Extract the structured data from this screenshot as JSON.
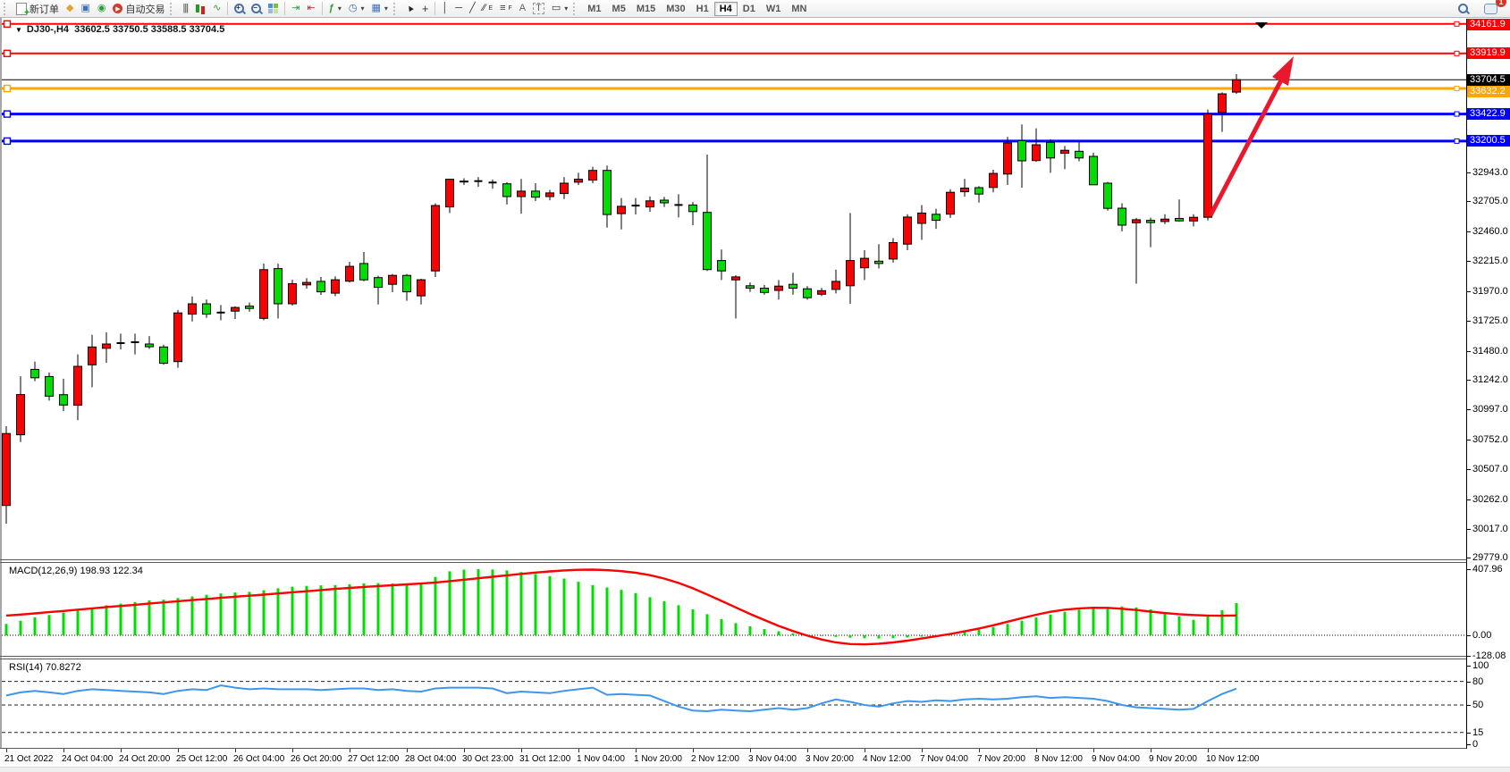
{
  "toolbar": {
    "new_order_label": "新订单",
    "autotrade_label": "自动交易",
    "timeframes": [
      "M1",
      "M5",
      "M15",
      "M30",
      "H1",
      "H4",
      "D1",
      "W1",
      "MN"
    ],
    "active_timeframe": "H4",
    "notification_count": "1",
    "tool_letters": {
      "text": "A",
      "label": "T",
      "channel": "E",
      "fibonacci": "F"
    },
    "icons": {
      "new_order_plus": "+",
      "symbols": "◆",
      "data_window": "▣",
      "navigator": "◉",
      "autotrade_play": "▶",
      "bar_chart": "|||",
      "line_chart": "∿",
      "zoom_in": "+",
      "zoom_out": "−",
      "auto_scroll": "⇥",
      "chart_shift": "⇤",
      "indicators": "ƒ",
      "clock": "◷",
      "template": "▦",
      "cursor": "▲",
      "crosshair": "+",
      "vline": "│",
      "hline": "─",
      "trendline": "╱",
      "channel": "∕∕",
      "fibonacci": "≡",
      "shapes": "▭",
      "dropdown": "▾"
    }
  },
  "chart": {
    "title_symbol": "DJ30-,H4",
    "title_ohlc": "33602.5 33750.5 33588.5 33704.5",
    "macd_label": "MACD(12,26,9) 198.93 122.34",
    "rsi_label": "RSI(14) 70.8272"
  },
  "chart_data": {
    "type": "candlestick",
    "symbol": "DJ30-",
    "timeframe": "H4",
    "current_ohlc": {
      "open": 33602.5,
      "high": 33750.5,
      "low": 33588.5,
      "close": 33704.5
    },
    "current_price": 33704.5,
    "colors": {
      "bull": "#fe0000",
      "bear": "#00dd00",
      "wick": "#000000",
      "macd_histogram": "#00dd00",
      "macd_signal": "#fe0000",
      "rsi_line": "#3d96ee"
    },
    "hlines": [
      {
        "price": 34161.9,
        "color": "#fe0000",
        "width": 2
      },
      {
        "price": 33919.9,
        "color": "#fe0000",
        "width": 2
      },
      {
        "price": 33632.2,
        "color": "#ffa500",
        "width": 3
      },
      {
        "price": 33422.9,
        "color": "#0000ff",
        "width": 3
      },
      {
        "price": 33200.5,
        "color": "#0000ff",
        "width": 3
      }
    ],
    "price_axis_ticks": [
      32943.0,
      32705.0,
      32460.0,
      32215.0,
      31970.0,
      31725.0,
      31480.0,
      31242.0,
      30997.0,
      30752.0,
      30507.0,
      30262.0,
      30017.0,
      29779.0
    ],
    "time_labels": [
      "21 Oct 2022",
      "24 Oct 04:00",
      "24 Oct 20:00",
      "25 Oct 12:00",
      "26 Oct 04:00",
      "26 Oct 20:00",
      "27 Oct 12:00",
      "28 Oct 04:00",
      "30 Oct 23:00",
      "31 Oct 12:00",
      "1 Nov 04:00",
      "1 Nov 20:00",
      "2 Nov 12:00",
      "3 Nov 04:00",
      "3 Nov 20:00",
      "4 Nov 12:00",
      "7 Nov 04:00",
      "7 Nov 20:00",
      "8 Nov 12:00",
      "9 Nov 04:00",
      "9 Nov 20:00",
      "10 Nov 12:00"
    ],
    "candles": [
      [
        30210,
        30860,
        30060,
        30800
      ],
      [
        30790,
        31270,
        30730,
        31120
      ],
      [
        31327,
        31390,
        31230,
        31258
      ],
      [
        31268,
        31300,
        31070,
        31107
      ],
      [
        31119,
        31250,
        30985,
        31034
      ],
      [
        31034,
        31450,
        30910,
        31352
      ],
      [
        31364,
        31610,
        31180,
        31511
      ],
      [
        31500,
        31630,
        31380,
        31535
      ],
      [
        31542,
        31620,
        31490,
        31542
      ],
      [
        31550,
        31620,
        31450,
        31550
      ],
      [
        31535,
        31600,
        31495,
        31512
      ],
      [
        31511,
        31530,
        31365,
        31377
      ],
      [
        31390,
        31815,
        31340,
        31790
      ],
      [
        31780,
        31925,
        31720,
        31865
      ],
      [
        31865,
        31900,
        31750,
        31780
      ],
      [
        31793,
        31855,
        31730,
        31793
      ],
      [
        31805,
        31845,
        31740,
        31835
      ],
      [
        31846,
        31875,
        31800,
        31827
      ],
      [
        31745,
        32195,
        31730,
        32145
      ],
      [
        32154,
        32195,
        31745,
        31865
      ],
      [
        31865,
        32062,
        31850,
        32030
      ],
      [
        32020,
        32075,
        31990,
        32040
      ],
      [
        32049,
        32085,
        31938,
        31963
      ],
      [
        31952,
        32090,
        31927,
        32062
      ],
      [
        32050,
        32210,
        32040,
        32172
      ],
      [
        32196,
        32290,
        32050,
        32062
      ],
      [
        32080,
        32095,
        31860,
        32000
      ],
      [
        32025,
        32110,
        31960,
        32098
      ],
      [
        32098,
        32110,
        31890,
        31963
      ],
      [
        31930,
        32070,
        31860,
        32062
      ],
      [
        32135,
        32690,
        32085,
        32672
      ],
      [
        32660,
        32890,
        32610,
        32887
      ],
      [
        32870,
        32895,
        32840,
        32872
      ],
      [
        32872,
        32905,
        32825,
        32872
      ],
      [
        32860,
        32885,
        32810,
        32860
      ],
      [
        32850,
        32862,
        32680,
        32745
      ],
      [
        32745,
        32890,
        32605,
        32790
      ],
      [
        32790,
        32855,
        32708,
        32740
      ],
      [
        32745,
        32800,
        32715,
        32775
      ],
      [
        32770,
        32905,
        32725,
        32855
      ],
      [
        32863,
        32940,
        32840,
        32887
      ],
      [
        32880,
        32990,
        32855,
        32960
      ],
      [
        32960,
        33000,
        32490,
        32598
      ],
      [
        32605,
        32733,
        32475,
        32665
      ],
      [
        32671,
        32733,
        32598,
        32671
      ],
      [
        32660,
        32745,
        32620,
        32710
      ],
      [
        32716,
        32742,
        32660,
        32694
      ],
      [
        32676,
        32764,
        32574,
        32676
      ],
      [
        32676,
        32700,
        32510,
        32622
      ],
      [
        32615,
        33090,
        32135,
        32146
      ],
      [
        32220,
        32310,
        32060,
        32135
      ],
      [
        32062,
        32100,
        31745,
        32086
      ],
      [
        32013,
        32040,
        31963,
        31993
      ],
      [
        31993,
        32020,
        31940,
        31958
      ],
      [
        31975,
        32060,
        31900,
        32010
      ],
      [
        32025,
        32120,
        31940,
        31993
      ],
      [
        31988,
        32010,
        31898,
        31915
      ],
      [
        31944,
        31995,
        31928,
        31973
      ],
      [
        31983,
        32145,
        31950,
        32049
      ],
      [
        32013,
        32610,
        31865,
        32220
      ],
      [
        32160,
        32305,
        32060,
        32238
      ],
      [
        32215,
        32355,
        32155,
        32196
      ],
      [
        32232,
        32404,
        32203,
        32367
      ],
      [
        32355,
        32600,
        32305,
        32577
      ],
      [
        32525,
        32675,
        32390,
        32610
      ],
      [
        32600,
        32645,
        32480,
        32550
      ],
      [
        32600,
        32805,
        32570,
        32780
      ],
      [
        32785,
        32890,
        32745,
        32815
      ],
      [
        32818,
        32830,
        32695,
        32765
      ],
      [
        32820,
        32965,
        32780,
        32935
      ],
      [
        32930,
        33235,
        32840,
        33185
      ],
      [
        33204,
        33337,
        32818,
        33038
      ],
      [
        33040,
        33305,
        33030,
        33170
      ],
      [
        33190,
        33215,
        32940,
        33062
      ],
      [
        33100,
        33160,
        32970,
        33125
      ],
      [
        33117,
        33197,
        33035,
        33062
      ],
      [
        33075,
        33105,
        32840,
        32842
      ],
      [
        32855,
        32865,
        32630,
        32648
      ],
      [
        32650,
        32690,
        32460,
        32511
      ],
      [
        32530,
        32570,
        32030,
        32555
      ],
      [
        32550,
        32572,
        32330,
        32532
      ],
      [
        32540,
        32600,
        32520,
        32560
      ],
      [
        32565,
        32721,
        32538,
        32545
      ],
      [
        32545,
        32600,
        32500,
        32575
      ],
      [
        32575,
        33459,
        32549,
        33422
      ],
      [
        33434,
        33600,
        33276,
        33588
      ],
      [
        33602.5,
        33750.5,
        33588.5,
        33704.5
      ]
    ],
    "macd": {
      "params": "12,26,9",
      "value_main": 198.93,
      "value_signal": 122.34,
      "axis_labels": [
        "407.96",
        "0.00",
        "-128.08"
      ],
      "histogram": [
        70,
        90,
        110,
        125,
        140,
        155,
        170,
        185,
        195,
        205,
        215,
        220,
        230,
        240,
        250,
        258,
        264,
        268,
        278,
        290,
        300,
        305,
        308,
        310,
        315,
        320,
        322,
        320,
        318,
        320,
        360,
        395,
        405,
        408,
        406,
        400,
        390,
        378,
        365,
        350,
        330,
        310,
        295,
        280,
        260,
        235,
        210,
        185,
        160,
        130,
        100,
        75,
        55,
        38,
        25,
        12,
        4,
        -4,
        -10,
        -15,
        -18,
        -20,
        -18,
        -14,
        -8,
        0,
        10,
        22,
        35,
        50,
        70,
        90,
        110,
        128,
        145,
        158,
        168,
        175,
        178,
        172,
        160,
        140,
        118,
        95,
        115,
        155,
        198.93
      ],
      "signal": [
        122,
        128,
        135,
        143,
        150,
        158,
        166,
        174,
        181,
        188,
        196,
        203,
        210,
        217,
        224,
        231,
        238,
        244,
        251,
        258,
        265,
        272,
        279,
        286,
        292,
        298,
        304,
        309,
        314,
        319,
        326,
        334,
        343,
        352,
        361,
        370,
        379,
        387,
        394,
        400,
        404,
        405,
        402,
        396,
        386,
        371,
        350,
        323,
        290,
        252,
        212,
        172,
        132,
        94,
        58,
        26,
        -2,
        -26,
        -44,
        -54,
        -56,
        -52,
        -44,
        -33,
        -20,
        -6,
        8,
        24,
        42,
        62,
        84,
        106,
        127,
        145,
        158,
        166,
        170,
        169,
        164,
        156,
        146,
        137,
        130,
        125,
        122,
        121,
        122.34
      ]
    },
    "rsi": {
      "period": 14,
      "value": 70.8272,
      "levels": [
        100,
        80,
        50,
        15,
        0
      ],
      "dashed_levels": [
        80,
        50,
        15
      ],
      "series": [
        62,
        66,
        68,
        66,
        64,
        68,
        70,
        69,
        68,
        67,
        66,
        64,
        68,
        70,
        69,
        75,
        72,
        70,
        71,
        70,
        70,
        70,
        69,
        70,
        71,
        71,
        69,
        70,
        68,
        67,
        71,
        72,
        72,
        72,
        71,
        65,
        67,
        66,
        65,
        68,
        70,
        72,
        63,
        64,
        63,
        62,
        55,
        48,
        43,
        42,
        44,
        43,
        42,
        44,
        46,
        44,
        46,
        52,
        57,
        54,
        50,
        48,
        52,
        55,
        54,
        56,
        55,
        57,
        58,
        57,
        58,
        60,
        61,
        59,
        60,
        59,
        58,
        55,
        50,
        47,
        46,
        45,
        44,
        45,
        55,
        64,
        70.83
      ]
    },
    "annotations": {
      "arrow": {
        "from": [
          1354,
          241
        ],
        "to": [
          1436,
          84
        ],
        "head": [
          [
            1447,
            63
          ],
          [
            1441,
            96
          ],
          [
            1423,
            86
          ]
        ],
        "color": "#e8192c",
        "width": 5
      },
      "top_marker": [
        [
          1404,
          25
        ],
        [
          1418,
          25
        ],
        [
          1411,
          32
        ]
      ]
    }
  }
}
